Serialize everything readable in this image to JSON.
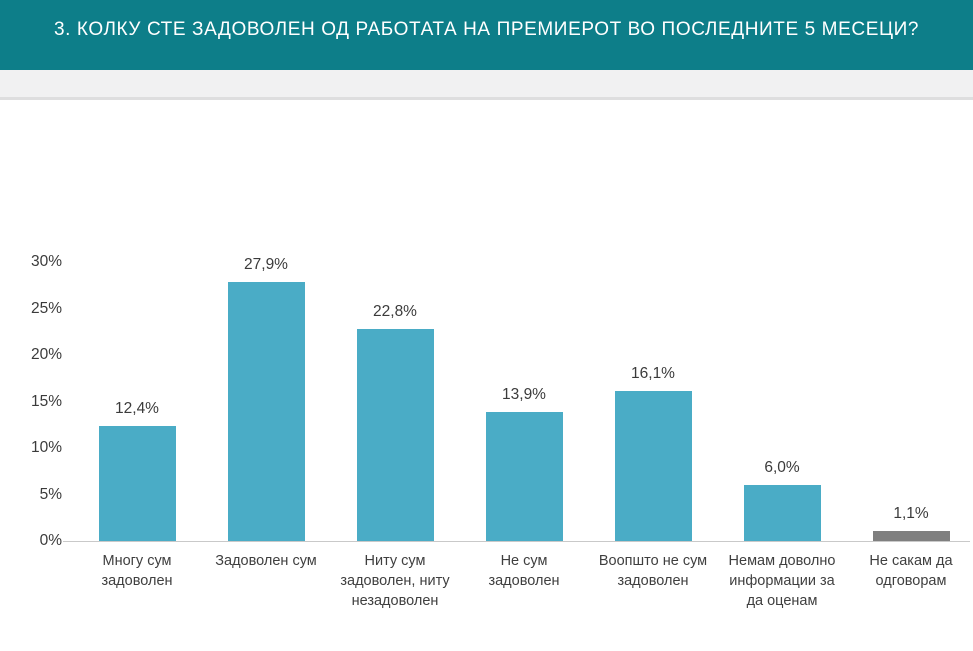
{
  "header": {
    "title": "3. КОЛКУ СТЕ ЗАДОВОЛЕН ОД РАБОТАТА НА ПРЕМИЕРОТ ВО ПОСЛЕДНИТЕ 5 МЕСЕЦИ?",
    "background_color": "#0d7e89",
    "text_color": "#ffffff"
  },
  "chart_data": {
    "type": "bar",
    "title": "",
    "categories": [
      "Многу сум задоволен",
      "Задоволен сум",
      "Ниту сум задоволен, ниту незадоволен",
      "Не сум задоволен",
      "Воопшто не сум задоволен",
      "Немам доволно информации за да оценам",
      "Не сакам да одговорам"
    ],
    "values": [
      12.4,
      27.9,
      22.8,
      13.9,
      16.1,
      6.0,
      1.1
    ],
    "value_labels": [
      "12,4%",
      "27,9%",
      "22,8%",
      "13,9%",
      "16,1%",
      "6,0%",
      "1,1%"
    ],
    "bar_colors": [
      "#4aacc6",
      "#4aacc6",
      "#4aacc6",
      "#4aacc6",
      "#4aacc6",
      "#4aacc6",
      "#7f7f7f"
    ],
    "xlabel": "",
    "ylabel": "",
    "ylim": [
      0,
      30
    ],
    "ytick_values": [
      0,
      5,
      10,
      15,
      20,
      25,
      30
    ],
    "ytick_labels": [
      "0%",
      "5%",
      "10%",
      "15%",
      "20%",
      "25%",
      "30%"
    ],
    "grid": false,
    "legend_position": "none",
    "decimal_separator": ","
  }
}
